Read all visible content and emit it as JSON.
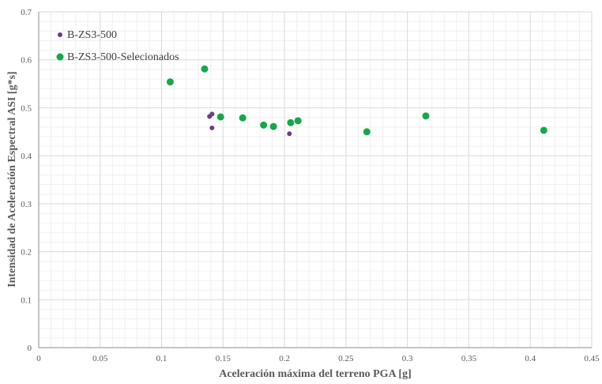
{
  "chart_data": {
    "type": "scatter",
    "title": "",
    "xlabel": "Aceleración máxima del terreno PGA [g]",
    "ylabel": "Intensidad de Aceleración Espectral ASI [g*s]",
    "xlim": [
      0,
      0.45
    ],
    "ylim": [
      0,
      0.7
    ],
    "xticks": [
      0,
      0.05,
      0.1,
      0.15,
      0.2,
      0.25,
      0.3,
      0.35,
      0.4,
      0.45
    ],
    "yticks": [
      0,
      0.1,
      0.2,
      0.3,
      0.4,
      0.5,
      0.6,
      0.7
    ],
    "xtick_labels": [
      "0",
      "0.05",
      "0.1",
      "0.15",
      "0.2",
      "0.25",
      "0.3",
      "0.35",
      "0.4",
      "0.45"
    ],
    "ytick_labels": [
      "0",
      "0.1",
      "0.2",
      "0.3",
      "0.4",
      "0.5",
      "0.6",
      "0.7"
    ],
    "grid": true,
    "minor_grid": true,
    "legend_position": "top-left",
    "series": [
      {
        "name": "B-ZS3-500",
        "color": "#6a3d8a",
        "marker_size": "small",
        "points": [
          {
            "x": 0.139,
            "y": 0.482
          },
          {
            "x": 0.141,
            "y": 0.487
          },
          {
            "x": 0.141,
            "y": 0.458
          },
          {
            "x": 0.204,
            "y": 0.446
          }
        ]
      },
      {
        "name": "B-ZS3-500-Selecionados",
        "color": "#14a84b",
        "marker_size": "large",
        "points": [
          {
            "x": 0.107,
            "y": 0.554
          },
          {
            "x": 0.135,
            "y": 0.581
          },
          {
            "x": 0.148,
            "y": 0.481
          },
          {
            "x": 0.166,
            "y": 0.479
          },
          {
            "x": 0.183,
            "y": 0.464
          },
          {
            "x": 0.191,
            "y": 0.461
          },
          {
            "x": 0.205,
            "y": 0.469
          },
          {
            "x": 0.211,
            "y": 0.473
          },
          {
            "x": 0.267,
            "y": 0.45
          },
          {
            "x": 0.315,
            "y": 0.483
          },
          {
            "x": 0.411,
            "y": 0.453
          }
        ]
      }
    ]
  }
}
